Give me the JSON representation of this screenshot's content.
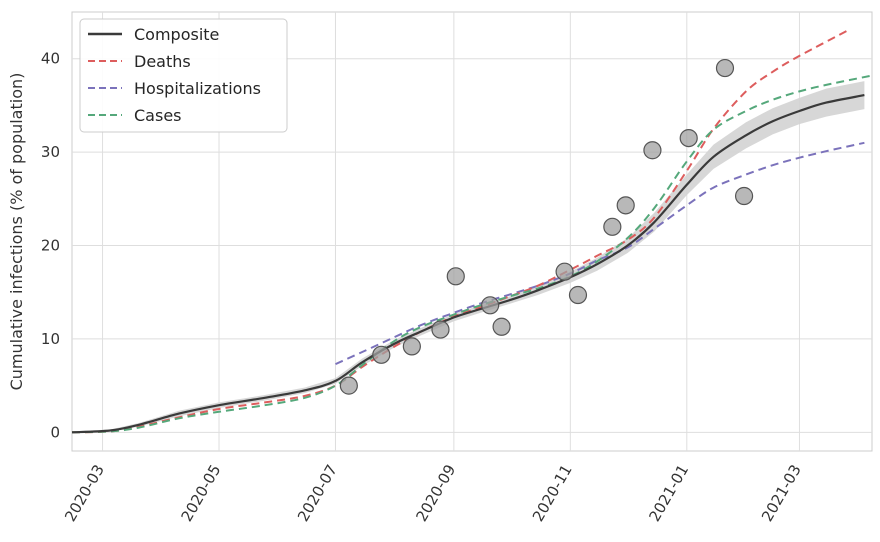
{
  "chart_data": {
    "type": "line",
    "title": "",
    "xlabel": "",
    "ylabel": "Cumulative infections (% of population)",
    "xlim": [
      "2020-02-14",
      "2021-04-08"
    ],
    "ylim": [
      -2,
      45
    ],
    "grid": true,
    "legend_position": "top-left",
    "x_ticks": [
      "2020-03",
      "2020-05",
      "2020-07",
      "2020-09",
      "2020-11",
      "2021-01",
      "2021-03"
    ],
    "y_ticks": [
      0,
      10,
      20,
      30,
      40
    ],
    "series": [
      {
        "name": "Composite",
        "style": "solid",
        "color": "#3a3a3a",
        "band_color": "#d3d3d3",
        "points": [
          [
            "2020-02-14",
            0.0
          ],
          [
            "2020-03-05",
            0.2
          ],
          [
            "2020-03-20",
            0.8
          ],
          [
            "2020-04-10",
            2.0
          ],
          [
            "2020-05-01",
            2.9
          ],
          [
            "2020-05-25",
            3.7
          ],
          [
            "2020-06-15",
            4.5
          ],
          [
            "2020-07-01",
            5.5
          ],
          [
            "2020-07-15",
            7.5
          ],
          [
            "2020-08-01",
            9.5
          ],
          [
            "2020-08-15",
            10.8
          ],
          [
            "2020-09-01",
            12.3
          ],
          [
            "2020-09-15",
            13.2
          ],
          [
            "2020-10-01",
            14.2
          ],
          [
            "2020-10-15",
            15.2
          ],
          [
            "2020-11-01",
            16.6
          ],
          [
            "2020-11-15",
            18.0
          ],
          [
            "2020-12-01",
            20.0
          ],
          [
            "2020-12-15",
            22.5
          ],
          [
            "2021-01-01",
            26.5
          ],
          [
            "2021-01-15",
            29.5
          ],
          [
            "2021-02-01",
            31.8
          ],
          [
            "2021-02-15",
            33.3
          ],
          [
            "2021-03-01",
            34.4
          ],
          [
            "2021-03-15",
            35.3
          ],
          [
            "2021-04-04",
            36.1
          ]
        ],
        "band_width": [
          0.1,
          0.1,
          0.2,
          0.3,
          0.3,
          0.3,
          0.3,
          0.3,
          0.4,
          0.4,
          0.4,
          0.4,
          0.4,
          0.4,
          0.5,
          0.6,
          0.7,
          0.8,
          1.0,
          1.1,
          1.3,
          1.4,
          1.4,
          1.4,
          1.5,
          1.5
        ]
      },
      {
        "name": "Deaths",
        "style": "dashed",
        "color": "#dd5d5d",
        "points": [
          [
            "2020-02-14",
            0.0
          ],
          [
            "2020-03-05",
            0.1
          ],
          [
            "2020-03-20",
            0.6
          ],
          [
            "2020-04-10",
            1.6
          ],
          [
            "2020-05-01",
            2.5
          ],
          [
            "2020-05-25",
            3.2
          ],
          [
            "2020-06-15",
            3.9
          ],
          [
            "2020-07-01",
            5.0
          ],
          [
            "2020-07-15",
            7.0
          ],
          [
            "2020-08-01",
            9.2
          ],
          [
            "2020-08-15",
            10.8
          ],
          [
            "2020-09-01",
            12.4
          ],
          [
            "2020-09-15",
            13.4
          ],
          [
            "2020-10-01",
            14.6
          ],
          [
            "2020-10-15",
            15.7
          ],
          [
            "2020-11-01",
            17.4
          ],
          [
            "2020-11-15",
            18.9
          ],
          [
            "2020-12-01",
            20.6
          ],
          [
            "2020-12-15",
            23.0
          ],
          [
            "2021-01-01",
            28.0
          ],
          [
            "2021-01-15",
            32.5
          ],
          [
            "2021-02-01",
            36.5
          ],
          [
            "2021-02-15",
            38.6
          ],
          [
            "2021-03-01",
            40.3
          ],
          [
            "2021-03-27",
            43.1
          ]
        ]
      },
      {
        "name": "Hospitalizations",
        "style": "dashed",
        "color": "#7b72bb",
        "points": [
          [
            "2020-07-01",
            7.3
          ],
          [
            "2020-07-15",
            8.6
          ],
          [
            "2020-08-01",
            10.2
          ],
          [
            "2020-08-15",
            11.5
          ],
          [
            "2020-09-01",
            12.8
          ],
          [
            "2020-09-15",
            13.8
          ],
          [
            "2020-10-01",
            14.8
          ],
          [
            "2020-10-15",
            15.7
          ],
          [
            "2020-11-01",
            17.0
          ],
          [
            "2020-11-15",
            18.4
          ],
          [
            "2020-12-01",
            19.8
          ],
          [
            "2020-12-15",
            21.8
          ],
          [
            "2021-01-01",
            24.3
          ],
          [
            "2021-01-15",
            26.2
          ],
          [
            "2021-02-01",
            27.6
          ],
          [
            "2021-02-15",
            28.6
          ],
          [
            "2021-03-01",
            29.4
          ],
          [
            "2021-03-15",
            30.1
          ],
          [
            "2021-04-04",
            31.0
          ]
        ]
      },
      {
        "name": "Cases",
        "style": "dashed",
        "color": "#55a87b",
        "points": [
          [
            "2020-02-14",
            0.0
          ],
          [
            "2020-03-05",
            0.1
          ],
          [
            "2020-03-20",
            0.5
          ],
          [
            "2020-04-10",
            1.5
          ],
          [
            "2020-05-01",
            2.2
          ],
          [
            "2020-05-25",
            2.9
          ],
          [
            "2020-06-15",
            3.7
          ],
          [
            "2020-07-01",
            5.0
          ],
          [
            "2020-07-15",
            7.2
          ],
          [
            "2020-08-01",
            9.8
          ],
          [
            "2020-08-15",
            11.3
          ],
          [
            "2020-09-01",
            12.6
          ],
          [
            "2020-09-15",
            13.6
          ],
          [
            "2020-10-01",
            14.6
          ],
          [
            "2020-10-15",
            15.4
          ],
          [
            "2020-11-01",
            16.7
          ],
          [
            "2020-11-15",
            18.3
          ],
          [
            "2020-12-01",
            20.8
          ],
          [
            "2020-12-15",
            24.0
          ],
          [
            "2021-01-01",
            29.0
          ],
          [
            "2021-01-15",
            32.4
          ],
          [
            "2021-02-01",
            34.4
          ],
          [
            "2021-02-15",
            35.6
          ],
          [
            "2021-03-01",
            36.5
          ],
          [
            "2021-03-15",
            37.2
          ],
          [
            "2021-04-08",
            38.2
          ]
        ]
      }
    ],
    "scatter": {
      "color": "#a0a0a0",
      "edge_color": "#555555",
      "points": [
        [
          "2020-07-08",
          5.0
        ],
        [
          "2020-07-25",
          8.3
        ],
        [
          "2020-08-10",
          9.2
        ],
        [
          "2020-08-25",
          11.0
        ],
        [
          "2020-09-02",
          16.7
        ],
        [
          "2020-09-20",
          13.6
        ],
        [
          "2020-09-26",
          11.3
        ],
        [
          "2020-10-29",
          17.2
        ],
        [
          "2020-11-05",
          14.7
        ],
        [
          "2020-11-23",
          22.0
        ],
        [
          "2020-11-30",
          24.3
        ],
        [
          "2020-12-14",
          30.2
        ],
        [
          "2021-01-02",
          31.5
        ],
        [
          "2021-01-21",
          39.0
        ],
        [
          "2021-01-31",
          25.3
        ]
      ]
    }
  }
}
